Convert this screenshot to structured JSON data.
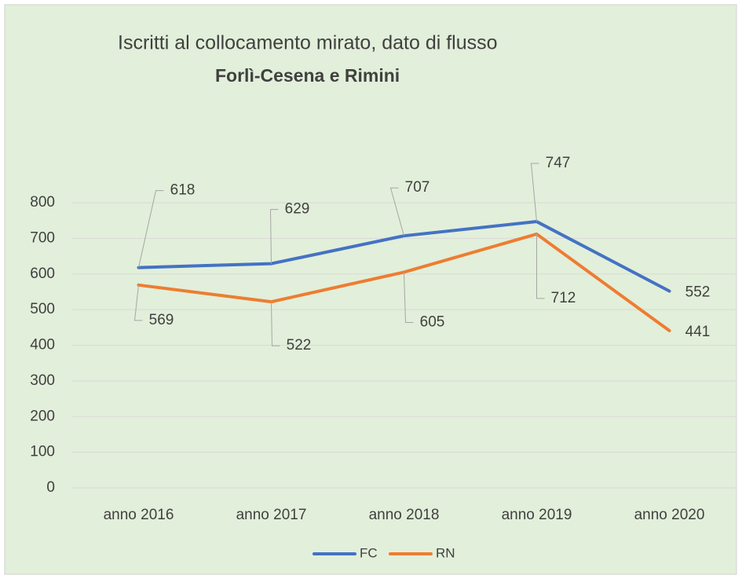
{
  "chart_data": {
    "type": "line",
    "title": "Iscritti al collocamento mirato, dato di flusso",
    "subtitle": "Forlì-Cesena e Rimini",
    "categories": [
      "anno 2016",
      "anno 2017",
      "anno 2018",
      "anno 2019",
      "anno 2020"
    ],
    "series": [
      {
        "name": "FC",
        "color": "#4472c4",
        "values": [
          618,
          629,
          707,
          747,
          552
        ]
      },
      {
        "name": "RN",
        "color": "#ed7d31",
        "values": [
          569,
          522,
          605,
          712,
          441
        ]
      }
    ],
    "ylim": [
      0,
      800
    ],
    "yticks": [
      0,
      100,
      200,
      300,
      400,
      500,
      600,
      700,
      800
    ],
    "grid": true,
    "legend": "bottom"
  }
}
